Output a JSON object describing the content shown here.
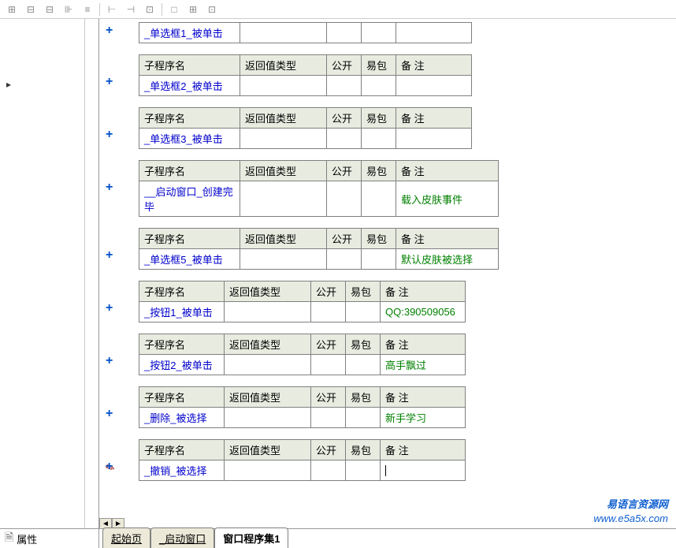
{
  "toolbar": {
    "buttons": [
      "⊞",
      "⊟",
      "⊟",
      "⊪",
      "≡",
      "⊢",
      "⊣",
      "⊡",
      "□",
      "⊞",
      "⊡"
    ]
  },
  "left": {
    "text": "▸",
    "prop_label": "属性"
  },
  "headers": {
    "name": "子程序名",
    "rettype": "返回值类型",
    "pub": "公开",
    "pkg": "易包",
    "remark": "备 注"
  },
  "subs": [
    {
      "name": "_单选框1_被单击",
      "remark": "",
      "wide": true,
      "show_header": false
    },
    {
      "name": "_单选框2_被单击",
      "remark": "",
      "wide": true
    },
    {
      "name": "_单选框3_被单击",
      "remark": "",
      "wide": true
    },
    {
      "name": "__启动窗口_创建完毕",
      "remark": "载入皮肤事件",
      "wide": true,
      "remark_w": 130
    },
    {
      "name": "_单选框5_被单击",
      "remark": "默认皮肤被选择",
      "wide": true,
      "remark_w": 130
    },
    {
      "name": "_按钮1_被单击",
      "remark": "QQ:390509056",
      "wide": false
    },
    {
      "name": "_按钮2_被单击",
      "remark": "高手飘过",
      "wide": false
    },
    {
      "name": "_删除_被选择",
      "remark": "新手学习",
      "wide": false
    },
    {
      "name": "_撤销_被选择",
      "remark": "",
      "wide": false,
      "cursor": true,
      "pencil": true
    }
  ],
  "tabs": {
    "items": [
      {
        "label": "起始页",
        "underline": true
      },
      {
        "label": "_启动窗口",
        "underline": true
      },
      {
        "label": "窗口程序集1",
        "underline": false,
        "active": true
      }
    ]
  },
  "watermark": {
    "ch": "易语言资源网",
    "en": "www.e5a5x.com"
  },
  "layout": {
    "col_name_wide": 128,
    "col_name_narrow": 108,
    "col_rettype": 110,
    "col_pub": 44,
    "col_pkg": 44
  }
}
